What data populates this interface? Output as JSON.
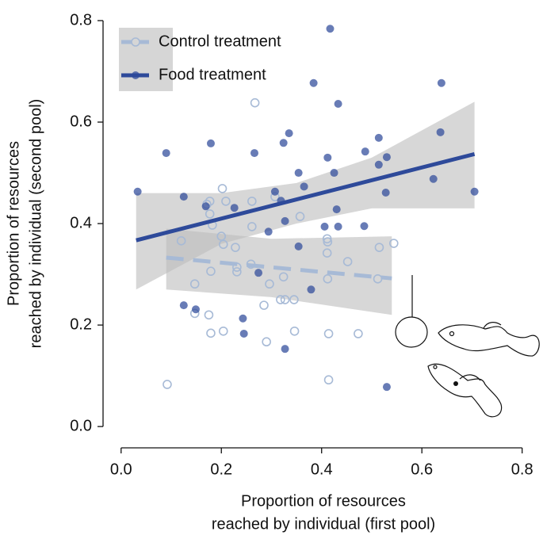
{
  "chart_data": {
    "type": "scatter",
    "xlabel": [
      "Proportion of resources",
      "reached by individual (first pool)"
    ],
    "ylabel": [
      "Proportion of resources",
      "reached by individual (second pool)"
    ],
    "xlim": [
      -0.036,
      0.81
    ],
    "ylim": [
      -0.042,
      0.84
    ],
    "xticks": [
      {
        "value": 0,
        "label": "0.0"
      },
      0.2,
      0.4,
      0.6,
      0.8
    ],
    "yticks": [
      {
        "value": 0,
        "label": "0.0"
      },
      0.2,
      0.4,
      0.6,
      0.8
    ],
    "legend": "upper left",
    "series": [
      {
        "name": "Control treatment",
        "color": "#a7bad6",
        "marker": "open",
        "x": [
          0.092,
          0.12,
          0.147,
          0.147,
          0.171,
          0.177,
          0.177,
          0.175,
          0.179,
          0.182,
          0.179,
          0.202,
          0.2,
          0.204,
          0.204,
          0.209,
          0.228,
          0.231,
          0.231,
          0.261,
          0.259,
          0.267,
          0.261,
          0.285,
          0.29,
          0.296,
          0.307,
          0.318,
          0.327,
          0.324,
          0.345,
          0.346,
          0.357,
          0.411,
          0.412,
          0.411,
          0.412,
          0.414,
          0.414,
          0.452,
          0.473,
          0.512,
          0.515,
          0.544
        ],
        "y": [
          0.083,
          0.366,
          0.281,
          0.223,
          0.438,
          0.444,
          0.419,
          0.22,
          0.184,
          0.397,
          0.306,
          0.469,
          0.375,
          0.359,
          0.188,
          0.444,
          0.353,
          0.314,
          0.305,
          0.444,
          0.32,
          0.638,
          0.394,
          0.239,
          0.167,
          0.281,
          0.453,
          0.25,
          0.25,
          0.295,
          0.25,
          0.188,
          0.414,
          0.37,
          0.364,
          0.342,
          0.291,
          0.183,
          0.092,
          0.325,
          0.183,
          0.291,
          0.353,
          0.361
        ],
        "fit": {
          "x": [
            0.09,
            0.54
          ],
          "y": [
            0.333,
            0.292
          ]
        },
        "band": {
          "x": [
            0.09,
            0.3,
            0.54
          ],
          "lower": [
            0.27,
            0.255,
            0.22
          ],
          "upper": [
            0.39,
            0.37,
            0.375
          ]
        }
      },
      {
        "name": "Food treatment",
        "color": "#2e4a9a",
        "marker": "filled",
        "x": [
          0.033,
          0.09,
          0.125,
          0.125,
          0.149,
          0.179,
          0.169,
          0.226,
          0.243,
          0.245,
          0.266,
          0.274,
          0.294,
          0.307,
          0.319,
          0.324,
          0.327,
          0.335,
          0.327,
          0.354,
          0.354,
          0.365,
          0.384,
          0.379,
          0.406,
          0.412,
          0.417,
          0.425,
          0.433,
          0.433,
          0.43,
          0.487,
          0.485,
          0.514,
          0.514,
          0.53,
          0.528,
          0.53,
          0.623,
          0.639,
          0.637,
          0.705
        ],
        "y": [
          0.463,
          0.539,
          0.453,
          0.239,
          0.231,
          0.558,
          0.434,
          0.431,
          0.213,
          0.183,
          0.539,
          0.303,
          0.384,
          0.463,
          0.445,
          0.559,
          0.153,
          0.578,
          0.405,
          0.5,
          0.355,
          0.473,
          0.677,
          0.27,
          0.394,
          0.53,
          0.784,
          0.5,
          0.636,
          0.394,
          0.428,
          0.542,
          0.395,
          0.569,
          0.516,
          0.531,
          0.461,
          0.078,
          0.488,
          0.677,
          0.58,
          0.463
        ],
        "fit": {
          "x": [
            0.03,
            0.705
          ],
          "y": [
            0.367,
            0.537
          ]
        },
        "band": {
          "x": [
            0.03,
            0.2,
            0.35,
            0.5,
            0.705
          ],
          "lower": [
            0.27,
            0.36,
            0.4,
            0.43,
            0.43
          ],
          "upper": [
            0.46,
            0.46,
            0.48,
            0.53,
            0.64
          ]
        }
      }
    ]
  }
}
